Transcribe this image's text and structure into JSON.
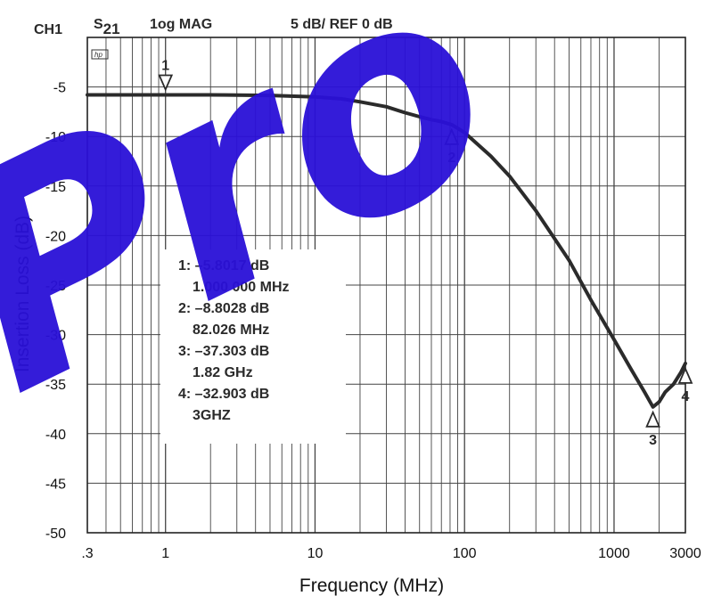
{
  "header": {
    "channel": "CH1",
    "param_main": "S",
    "param_sub": "21",
    "format": "1og MAG",
    "scale": "5 dB/  REF 0 dB",
    "badge": "hp"
  },
  "watermark": {
    "text": "Pro",
    "color": "#2a10d8"
  },
  "colors": {
    "trace": "#2b2b2b",
    "grid": "#444444",
    "frame": "#222222",
    "text": "#2a2a2a"
  },
  "chart_data": {
    "type": "line",
    "title": "",
    "xlabel": "Frequency (MHz)",
    "ylabel": "Insertion Loss (dB)",
    "x_scale": "log",
    "xlim": [
      0.3,
      3000
    ],
    "ylim": [
      -50,
      0
    ],
    "grid": true,
    "x_ticks": [
      {
        "value": 0.3,
        "label": ".3"
      },
      {
        "value": 1,
        "label": "1"
      },
      {
        "value": 10,
        "label": "10"
      },
      {
        "value": 100,
        "label": "100"
      },
      {
        "value": 1000,
        "label": "1000"
      },
      {
        "value": 3000,
        "label": "3000"
      }
    ],
    "y_ticks": [
      {
        "value": -5,
        "label": "-5"
      },
      {
        "value": -10,
        "label": "-10"
      },
      {
        "value": -15,
        "label": "-15"
      },
      {
        "value": -20,
        "label": "-20"
      },
      {
        "value": -25,
        "label": "-25"
      },
      {
        "value": -30,
        "label": "-30"
      },
      {
        "value": -35,
        "label": "-35"
      },
      {
        "value": -40,
        "label": "-40"
      },
      {
        "value": -45,
        "label": "-45"
      },
      {
        "value": -50,
        "label": "-50"
      }
    ],
    "series": [
      {
        "x": [
          0.3,
          0.5,
          1,
          2,
          5,
          10,
          15,
          20,
          30,
          40,
          50,
          60,
          70,
          82.026,
          100,
          150,
          200,
          300,
          500,
          700,
          1000,
          1300,
          1600,
          1820,
          2000,
          2200,
          2500,
          2800,
          3000
        ],
        "y": [
          -5.8,
          -5.8,
          -5.8017,
          -5.8,
          -5.85,
          -6.0,
          -6.2,
          -6.5,
          -7.0,
          -7.6,
          -8.0,
          -8.3,
          -8.5,
          -8.8028,
          -9.6,
          -12.0,
          -14.0,
          -17.5,
          -22.5,
          -26.5,
          -30.5,
          -33.5,
          -35.8,
          -37.303,
          -36.8,
          -35.8,
          -35.0,
          -33.8,
          -32.903
        ]
      }
    ],
    "markers": [
      {
        "id": "1",
        "x": 1,
        "y": -5.8017,
        "label_pos": "above"
      },
      {
        "id": "2",
        "x": 82.026,
        "y": -8.8028,
        "label_pos": "below"
      },
      {
        "id": "3",
        "x": 1820,
        "y": -37.303,
        "label_pos": "below"
      },
      {
        "id": "4",
        "x": 3000,
        "y": -32.903,
        "label_pos": "below"
      }
    ],
    "annotation_lines": [
      "1: –5.8017 dB",
      "1.000 000 MHz",
      "2: –8.8028 dB",
      "82.026 MHz",
      "3: –37.303 dB",
      "1.82 GHz",
      "4: –32.903 dB",
      "3GHZ"
    ]
  }
}
